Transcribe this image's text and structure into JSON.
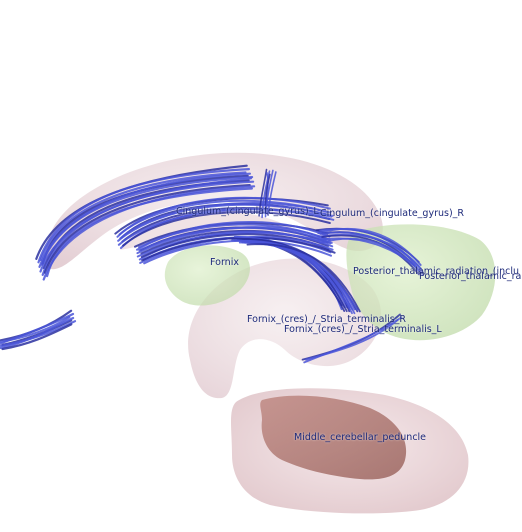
{
  "labels": {
    "cingulum_left": "Cingulum_(cingulate_gyrus)_L",
    "cingulum_right": "Cingulum_(cingulate_gyrus)_R",
    "fornix": "Fornix",
    "posterior_thalamic_1": "Posterior_thalamic_radiation_(inclu",
    "posterior_thalamic_2": "Posterior_thalamic_ra",
    "stria_right": "Fornix_(cres)_/_Stria_terminalis_R",
    "stria_left": "Fornix_(cres)_/_Stria_terminalis_L",
    "middle_cerebellar": "Middle_cerebellar_peduncle"
  },
  "colors": {
    "label_text": "#1e2a7a",
    "fiber": "#4a55d8",
    "fiber_dark": "#2a30a0",
    "cortex_shell": "#dcc0c8",
    "thalamus": "#c8e4b0",
    "peduncle_shell": "#e6ccd0",
    "peduncle_core": "#b07a74"
  }
}
